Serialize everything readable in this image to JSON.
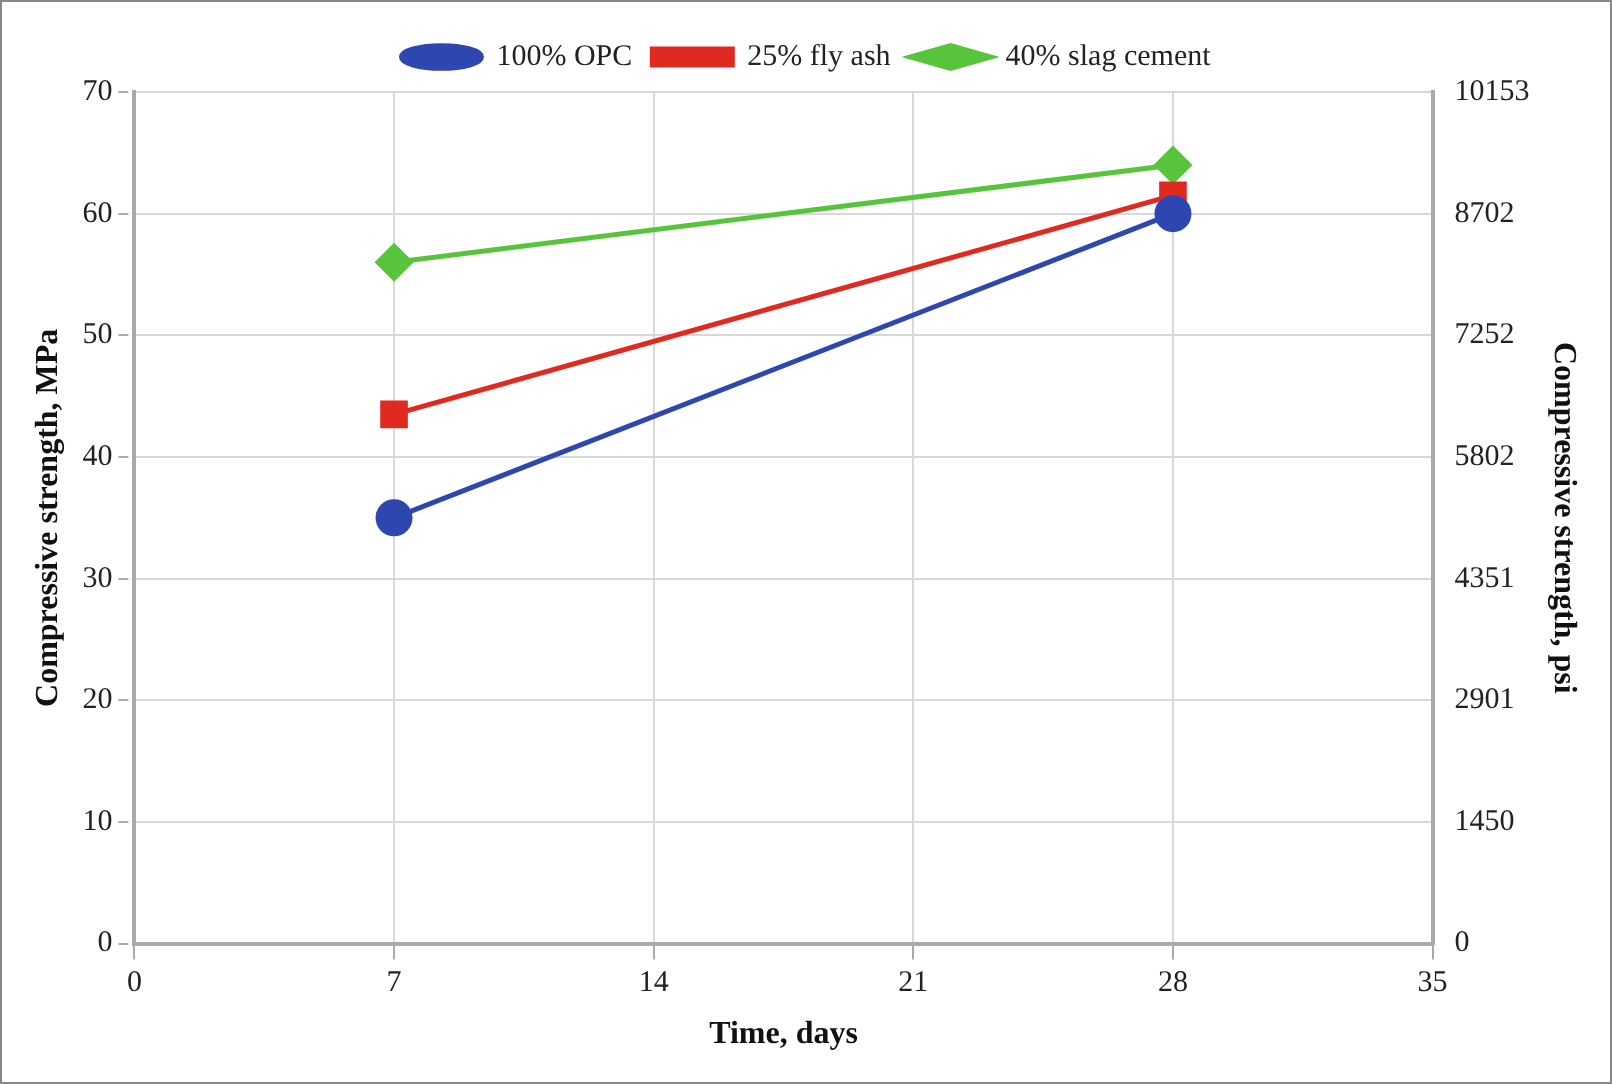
{
  "chart_data": {
    "type": "line",
    "xlabel": "Time, days",
    "ylabel": "Compressive strength, MPa",
    "y2label": "Compressive strength, psi",
    "x": [
      7,
      28
    ],
    "series": [
      {
        "name": "100% OPC",
        "color": "#2e46b0",
        "values": [
          35,
          60
        ],
        "marker": "circle"
      },
      {
        "name": "25% fly ash",
        "color": "#e02a20",
        "values": [
          43.5,
          61.5
        ],
        "marker": "square"
      },
      {
        "name": "40% slag cement",
        "color": "#58c43c",
        "values": [
          56,
          64
        ],
        "marker": "diamond"
      }
    ],
    "xlim": [
      0,
      35
    ],
    "xticks": [
      0,
      7,
      14,
      21,
      28,
      35
    ],
    "ylim": [
      0,
      70
    ],
    "yticks": [
      0,
      10,
      20,
      30,
      40,
      50,
      60,
      70
    ],
    "y2lim": [
      0,
      10153
    ],
    "y2ticks": [
      0,
      1450,
      2901,
      4351,
      5802,
      7252,
      8702,
      10153
    ],
    "grid": true,
    "legend": "top",
    "line_style": "solid"
  }
}
